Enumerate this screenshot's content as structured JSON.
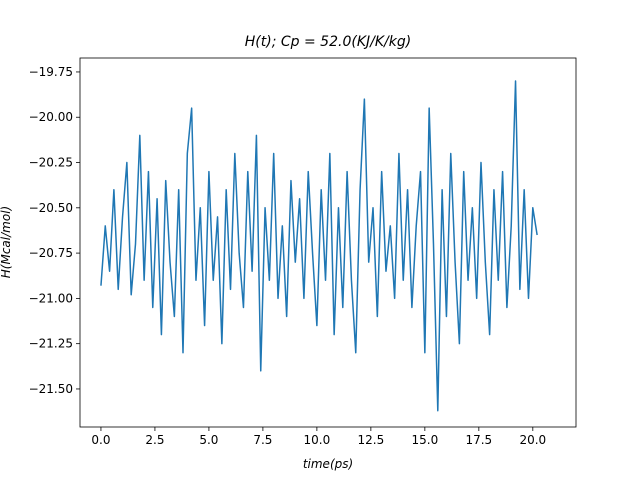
{
  "chart_data": {
    "type": "line",
    "title": "H(t); Cp = 52.0(KJ/K/kg)",
    "x_label": "time(ps)",
    "y_label": "H(Mcal/mol)",
    "x": [
      0,
      0.2,
      0.4,
      0.6,
      0.8,
      1.0,
      1.2,
      1.4,
      1.6,
      1.8,
      2.0,
      2.2,
      2.4,
      2.6,
      2.8,
      3.0,
      3.2,
      3.4,
      3.6,
      3.8,
      4.0,
      4.2,
      4.4,
      4.6,
      4.8,
      5.0,
      5.2,
      5.4,
      5.6,
      5.8,
      6.0,
      6.2,
      6.4,
      6.6,
      6.8,
      7.0,
      7.2,
      7.4,
      7.6,
      7.8,
      8.0,
      8.2,
      8.4,
      8.6,
      8.8,
      9.0,
      9.2,
      9.4,
      9.6,
      9.8,
      10.0,
      10.2,
      10.4,
      10.6,
      10.8,
      11.0,
      11.2,
      11.4,
      11.6,
      11.8,
      12.0,
      12.2,
      12.4,
      12.6,
      12.8,
      13.0,
      13.2,
      13.4,
      13.6,
      13.8,
      14.0,
      14.2,
      14.4,
      14.6,
      14.8,
      15.0,
      15.2,
      15.4,
      15.6,
      15.8,
      16.0,
      16.2,
      16.4,
      16.6,
      16.8,
      17.0,
      17.2,
      17.4,
      17.6,
      17.8,
      18.0,
      18.2,
      18.4,
      18.6,
      18.8,
      19.0,
      19.2,
      19.4,
      19.6,
      19.8,
      20.0,
      20.2
    ],
    "series": [
      {
        "name": "H",
        "color": "#1f77b4",
        "values": [
          -20.93,
          -20.6,
          -20.85,
          -20.4,
          -20.95,
          -20.55,
          -20.25,
          -20.98,
          -20.7,
          -20.1,
          -20.9,
          -20.3,
          -21.05,
          -20.45,
          -21.2,
          -20.35,
          -20.8,
          -21.1,
          -20.4,
          -21.3,
          -20.2,
          -19.95,
          -20.9,
          -20.5,
          -21.15,
          -20.3,
          -20.9,
          -20.55,
          -21.25,
          -20.4,
          -20.95,
          -20.2,
          -20.75,
          -21.05,
          -20.3,
          -20.85,
          -20.1,
          -21.4,
          -20.5,
          -20.9,
          -20.2,
          -21.0,
          -20.6,
          -21.1,
          -20.35,
          -20.8,
          -20.45,
          -21.0,
          -20.3,
          -20.75,
          -21.15,
          -20.4,
          -20.9,
          -20.2,
          -21.2,
          -20.5,
          -21.05,
          -20.3,
          -20.9,
          -21.3,
          -20.4,
          -19.9,
          -20.8,
          -20.5,
          -21.1,
          -20.3,
          -20.85,
          -20.6,
          -21.0,
          -20.2,
          -20.9,
          -20.4,
          -21.05,
          -20.6,
          -20.3,
          -21.3,
          -19.95,
          -20.7,
          -21.62,
          -20.4,
          -21.1,
          -20.2,
          -20.8,
          -21.25,
          -20.3,
          -20.9,
          -20.5,
          -21.0,
          -20.25,
          -20.8,
          -21.2,
          -20.4,
          -20.9,
          -20.3,
          -21.05,
          -20.6,
          -19.8,
          -20.95,
          -20.4,
          -21.0,
          -20.5,
          -20.65
        ]
      }
    ],
    "xlim": [
      -0.97,
      22.0
    ],
    "ylim": [
      -21.71,
      -19.673
    ],
    "xticks": [
      {
        "value": 0,
        "label": "0.0"
      },
      {
        "value": 2.5,
        "label": "2.5"
      },
      {
        "value": 5,
        "label": "5.0"
      },
      {
        "value": 7.5,
        "label": "7.5"
      },
      {
        "value": 10,
        "label": "10.0"
      },
      {
        "value": 12.5,
        "label": "12.5"
      },
      {
        "value": 15,
        "label": "15.0"
      },
      {
        "value": 17.5,
        "label": "17.5"
      },
      {
        "value": 20,
        "label": "20.0"
      }
    ],
    "yticks": [
      {
        "value": -21.5,
        "label": "−21.50"
      },
      {
        "value": -21.25,
        "label": "−21.25"
      },
      {
        "value": -21,
        "label": "−21.00"
      },
      {
        "value": -20.75,
        "label": "−20.75"
      },
      {
        "value": -20.5,
        "label": "−20.50"
      },
      {
        "value": -20.25,
        "label": "−20.25"
      },
      {
        "value": -20,
        "label": "−20.00"
      },
      {
        "value": -19.75,
        "label": "−19.75"
      }
    ]
  }
}
